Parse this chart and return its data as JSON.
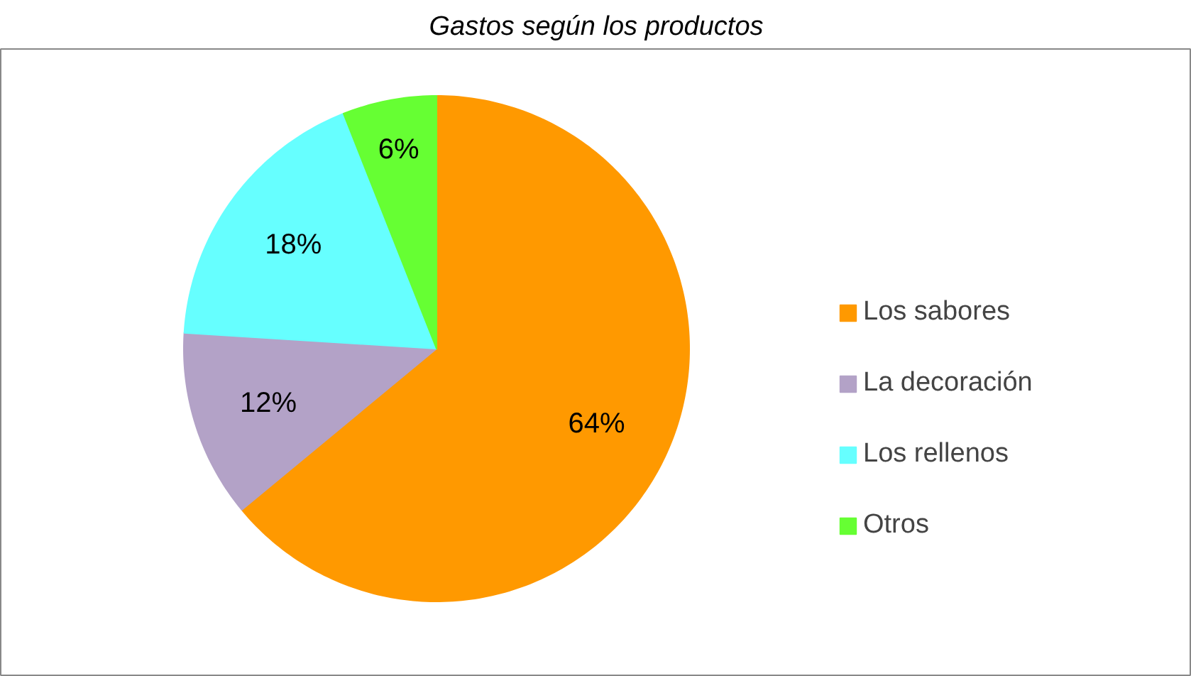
{
  "chart_data": {
    "type": "pie",
    "title": "Gastos según los productos",
    "categories": [
      "Los sabores",
      "La decoración",
      "Los rellenos",
      "Otros"
    ],
    "values": [
      64,
      12,
      18,
      6
    ],
    "colors": [
      "#ff9900",
      "#b3a2c7",
      "#66ffff",
      "#66ff33"
    ],
    "value_labels": [
      "64%",
      "12%",
      "18%",
      "6%"
    ],
    "legend": "right"
  }
}
